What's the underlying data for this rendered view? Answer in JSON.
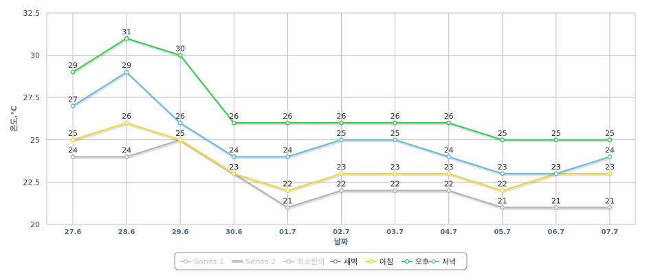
{
  "chart_data": {
    "type": "line",
    "xlabel": "날짜",
    "ylabel": "온도,°C",
    "ylim": [
      20,
      32.5
    ],
    "yticks": [
      "20",
      "22.5",
      "25",
      "27.5",
      "30",
      "32.5"
    ],
    "categories": [
      "27.6",
      "28.6",
      "29.6",
      "30.6",
      "01.7",
      "02.7",
      "03.7",
      "04.7",
      "05.7",
      "06.7",
      "07.7"
    ],
    "grid": true,
    "legend_position": "bottom-center",
    "series": [
      {
        "name": "새벽",
        "color": "#b5b5b5",
        "values": [
          24,
          24,
          25,
          23,
          21,
          22,
          22,
          22,
          21,
          21,
          21
        ]
      },
      {
        "name": "아침",
        "color": "#f5d63d",
        "values": [
          25,
          26,
          25,
          23,
          22,
          23,
          23,
          23,
          22,
          23,
          23
        ]
      },
      {
        "name": "오후",
        "color": "#3ecf5b",
        "values": [
          29,
          31,
          30,
          26,
          26,
          26,
          26,
          26,
          25,
          25,
          25
        ]
      },
      {
        "name": "저녁",
        "color": "#6bbde0",
        "values": [
          27,
          29,
          26,
          24,
          24,
          25,
          25,
          24,
          23,
          23,
          24
        ]
      }
    ],
    "legend": [
      {
        "name": "Series 1",
        "color": "#c8c8c8",
        "style": "line-marker",
        "hidden": true
      },
      {
        "name": "Series 2",
        "color": "#c8c8c8",
        "style": "thick-line",
        "hidden": true
      },
      {
        "name": "최소한의",
        "color": "#c8c8c8",
        "style": "line-marker",
        "hidden": true
      },
      {
        "name": "새벽",
        "color": "#9a9a9a",
        "style": "line-marker",
        "hidden": false
      },
      {
        "name": "아침",
        "color": "#f5d63d",
        "style": "line-marker",
        "hidden": false
      },
      {
        "name": "오후",
        "color": "#3ecf5b",
        "style": "line-marker",
        "hidden": false
      },
      {
        "name": "저녁",
        "color": "#6bbde0",
        "style": "line-marker",
        "hidden": false
      }
    ]
  }
}
